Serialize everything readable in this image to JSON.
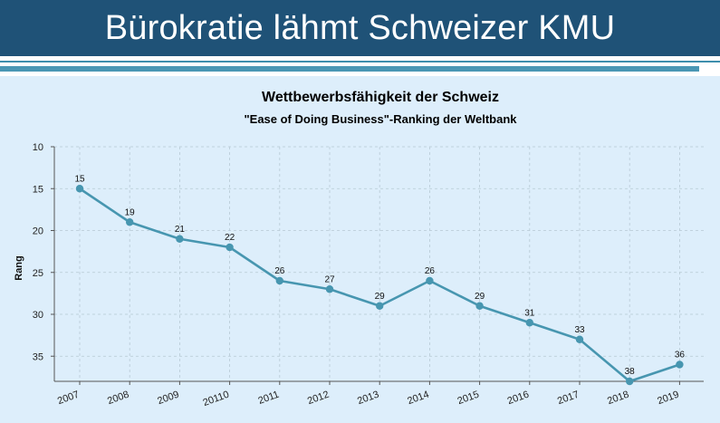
{
  "header": {
    "title": "Bürokratie lähmt Schweizer KMU"
  },
  "colors": {
    "banner": "#1f5277",
    "accent": "#4a97b4",
    "panel_background": "#ddeefb",
    "series_line": "#4796b0"
  },
  "chart_data": {
    "type": "line",
    "title": "Wettbewerbsfähigkeit der Schweiz",
    "subtitle": "\"Ease of Doing Business\"-Ranking der Weltbank",
    "xlabel": "",
    "ylabel": "Rang",
    "categories": [
      "2007",
      "2008",
      "2009",
      "20110",
      "2011",
      "2012",
      "2013",
      "2014",
      "2015",
      "2016",
      "2017",
      "2018",
      "2019"
    ],
    "values": [
      15,
      19,
      21,
      22,
      26,
      27,
      29,
      26,
      29,
      31,
      33,
      38,
      36
    ],
    "ylim": [
      10,
      38
    ],
    "y_inverted": true,
    "yticks": [
      "10",
      "15",
      "20",
      "25",
      "30",
      "35"
    ],
    "grid": true,
    "data_labels": true
  }
}
